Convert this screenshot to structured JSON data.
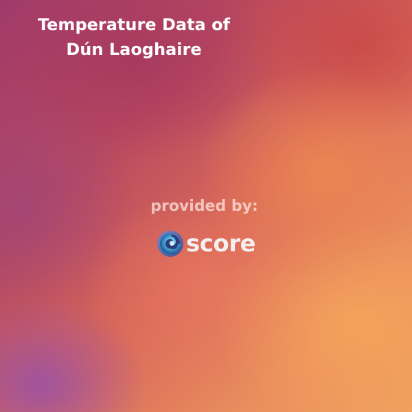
{
  "title": {
    "line1": "Temperature Data of",
    "line2": "Dún Laoghaire"
  },
  "credit": {
    "provided_by": "provided by:"
  },
  "logo": {
    "wordmark": "score",
    "icon": "score-swirl-logo-icon",
    "colors": {
      "outer_ring": "#5b6fb0",
      "inner_swirl": "#3fa8d8",
      "accent": "#2f6fae"
    }
  }
}
